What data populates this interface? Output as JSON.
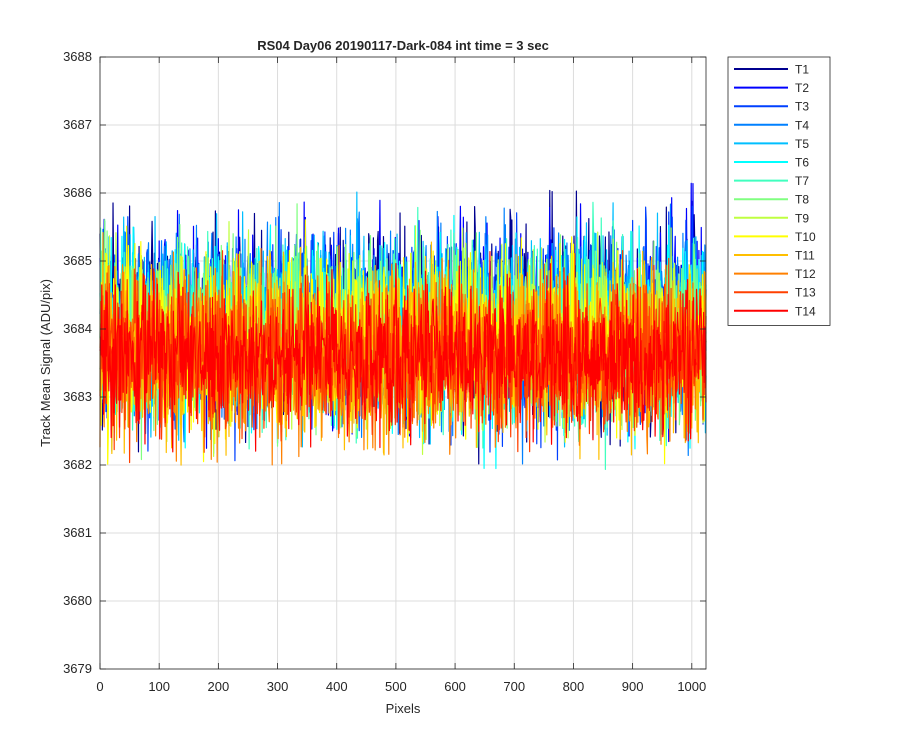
{
  "chart_data": {
    "type": "line",
    "title": "RS04 Day06 20190117-Dark-084 int time = 3 sec",
    "xlabel": "Pixels",
    "ylabel": "Track Mean Signal (ADU/pix)",
    "xlim": [
      0,
      1024
    ],
    "ylim": [
      3679,
      3688
    ],
    "xticks": [
      0,
      100,
      200,
      300,
      400,
      500,
      600,
      700,
      800,
      900,
      1000
    ],
    "yticks": [
      3679,
      3680,
      3681,
      3682,
      3683,
      3684,
      3685,
      3686,
      3687,
      3688
    ],
    "grid": true,
    "legend_position": "outside-top-right",
    "x_range": [
      0,
      1024
    ],
    "series": [
      {
        "name": "T1",
        "color": "#00008f",
        "mean": 3684.1,
        "spread": 0.95
      },
      {
        "name": "T2",
        "color": "#0000ff",
        "mean": 3684.1,
        "spread": 0.95
      },
      {
        "name": "T3",
        "color": "#0040ff",
        "mean": 3684.0,
        "spread": 0.95
      },
      {
        "name": "T4",
        "color": "#0080ff",
        "mean": 3684.0,
        "spread": 0.95
      },
      {
        "name": "T5",
        "color": "#00bfff",
        "mean": 3684.0,
        "spread": 0.9
      },
      {
        "name": "T6",
        "color": "#00ffff",
        "mean": 3683.9,
        "spread": 0.9
      },
      {
        "name": "T7",
        "color": "#40ffbf",
        "mean": 3683.9,
        "spread": 0.9
      },
      {
        "name": "T8",
        "color": "#80ff80",
        "mean": 3683.9,
        "spread": 0.9
      },
      {
        "name": "T9",
        "color": "#bfff40",
        "mean": 3683.8,
        "spread": 0.9
      },
      {
        "name": "T10",
        "color": "#ffff00",
        "mean": 3683.8,
        "spread": 0.9
      },
      {
        "name": "T11",
        "color": "#ffbf00",
        "mean": 3683.7,
        "spread": 0.85
      },
      {
        "name": "T12",
        "color": "#ff8000",
        "mean": 3683.6,
        "spread": 0.85
      },
      {
        "name": "T13",
        "color": "#ff4000",
        "mean": 3683.6,
        "spread": 0.8
      },
      {
        "name": "T14",
        "color": "#ff0000",
        "mean": 3683.6,
        "spread": 0.75
      }
    ]
  }
}
